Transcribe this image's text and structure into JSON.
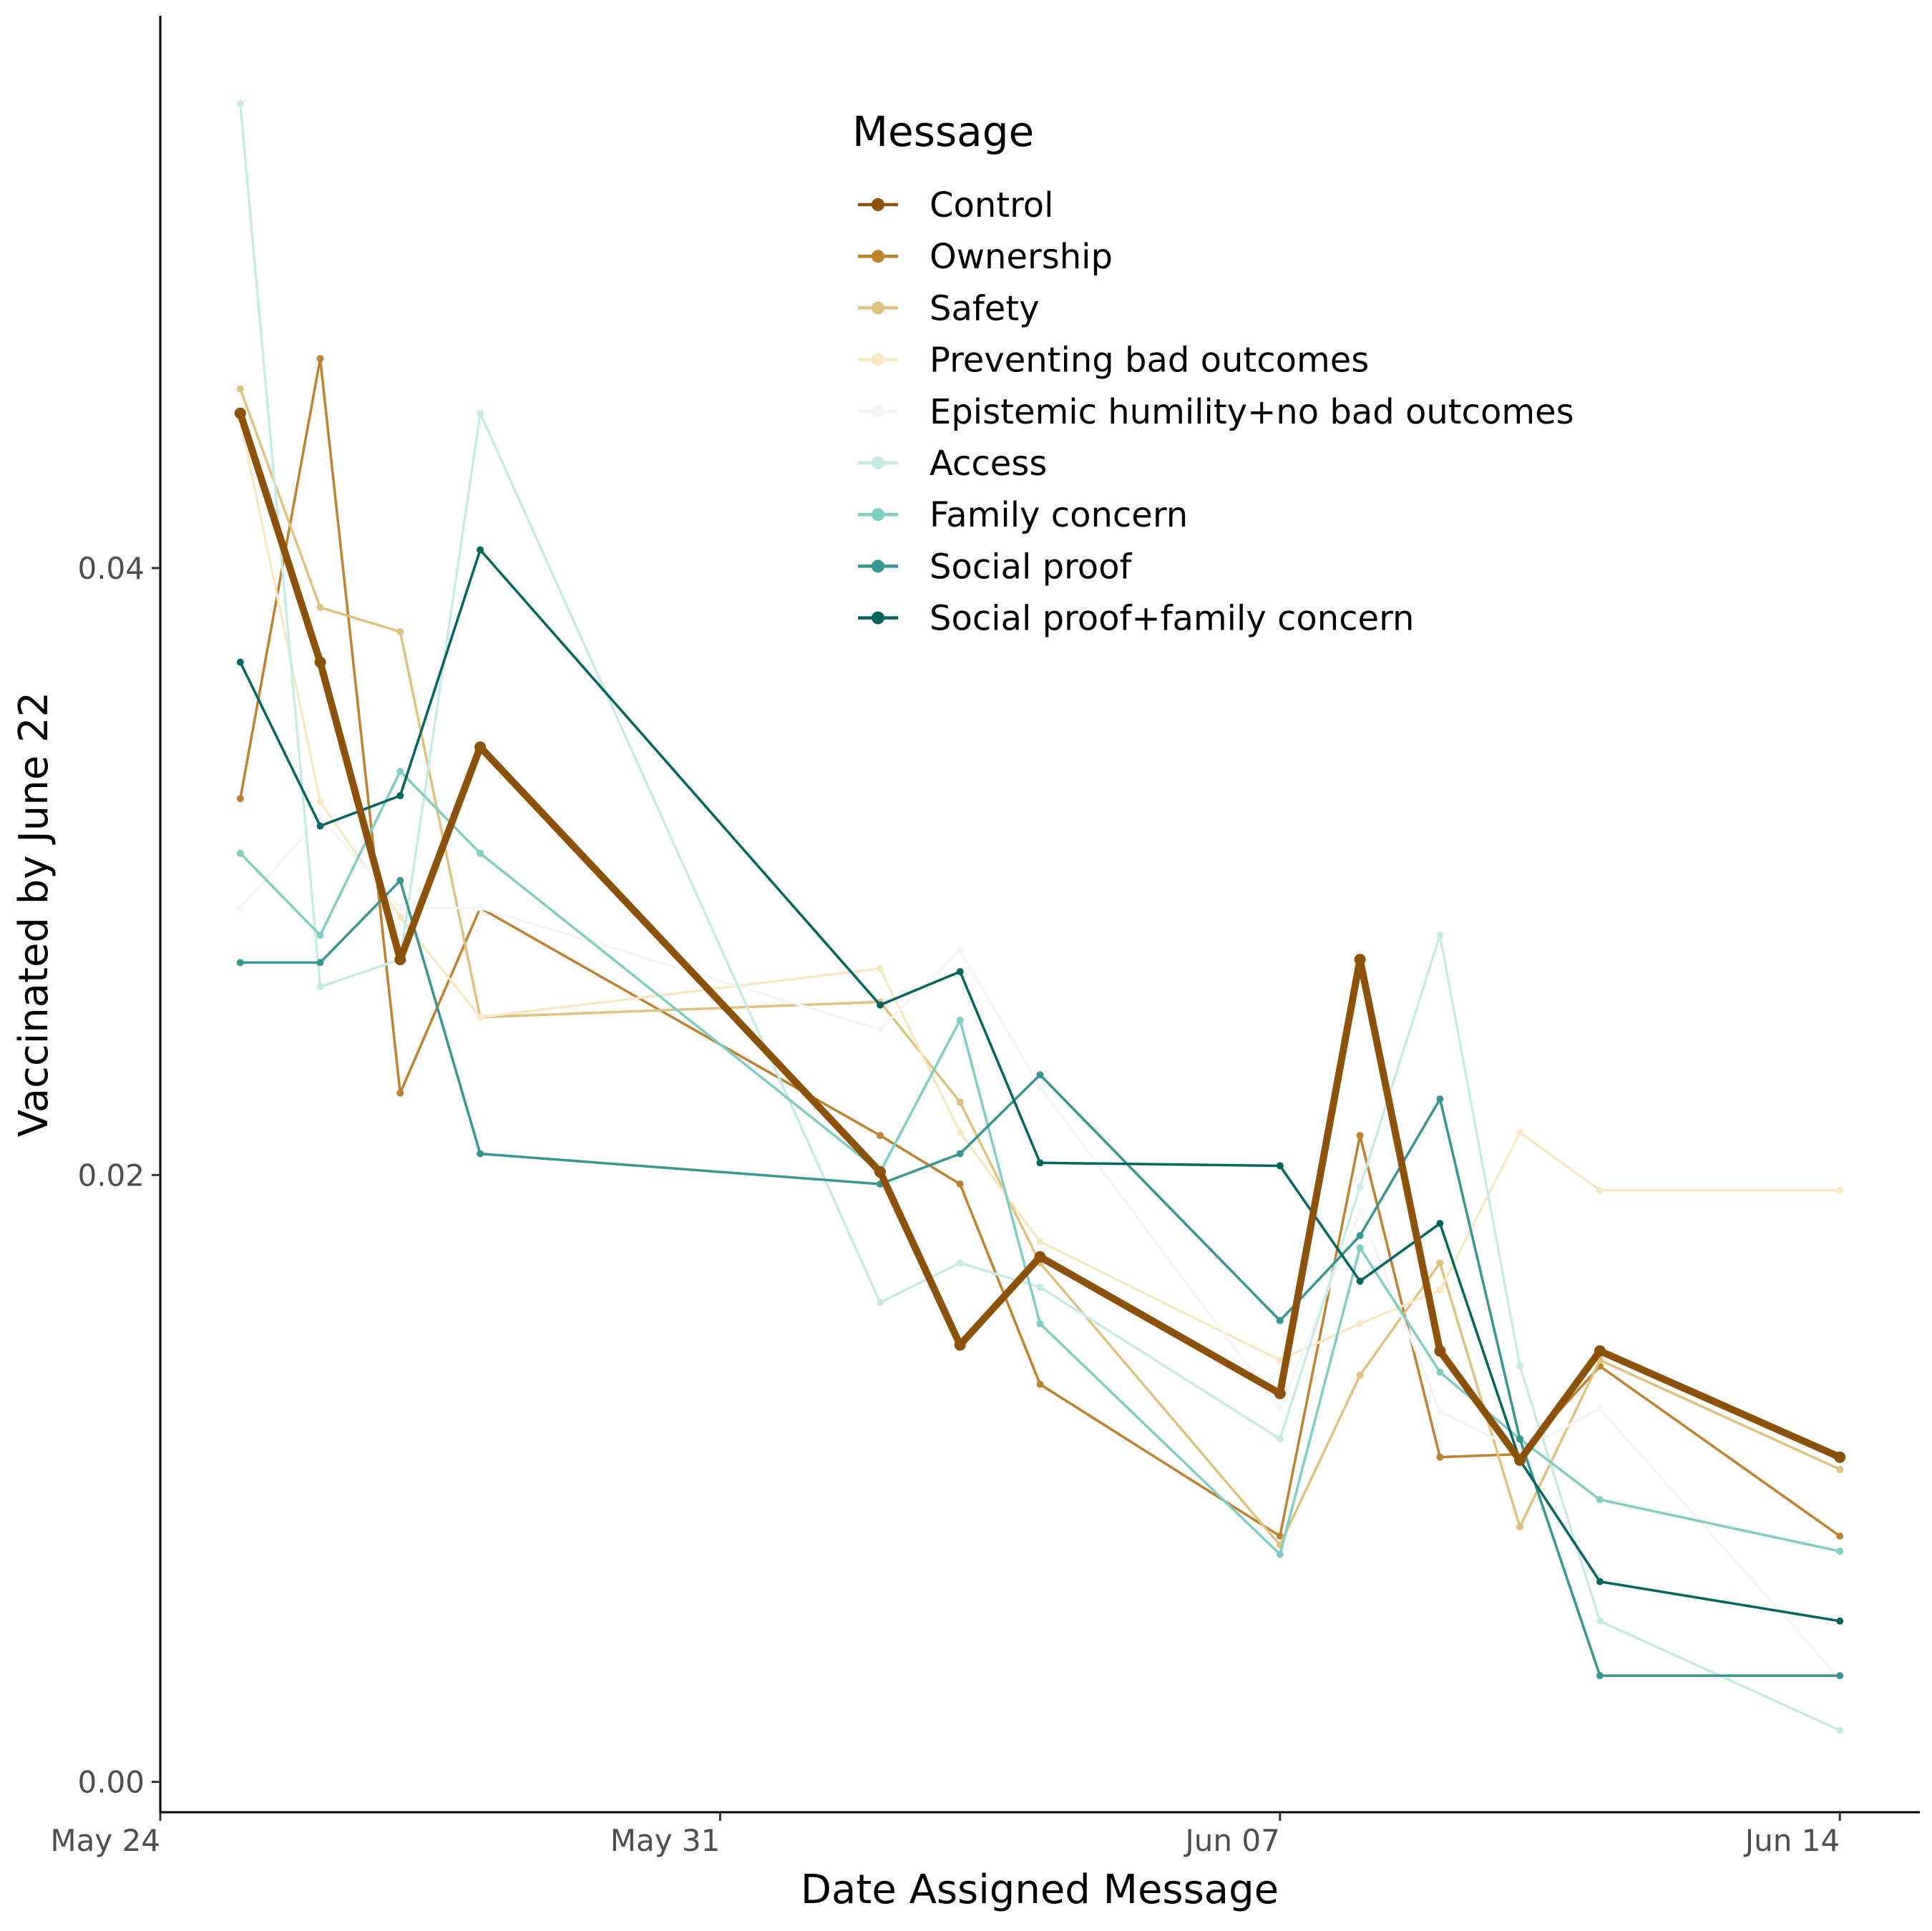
{
  "chart_data": {
    "type": "line",
    "xlabel": "Date Assigned Message",
    "ylabel": "Vaccinated by June 22",
    "x_ticks": [
      "May 24",
      "May 31",
      "Jun 07",
      "Jun 14"
    ],
    "y_ticks": [
      "0.00",
      "0.02",
      "0.04"
    ],
    "xlim": [
      "2021-05-24",
      "2021-06-15"
    ],
    "ylim": [
      -0.001,
      0.0582
    ],
    "grid": false,
    "legend": {
      "title": "Message",
      "position": "top-center"
    },
    "x": [
      "2021-05-25",
      "2021-05-26",
      "2021-05-27",
      "2021-05-28",
      "2021-06-02",
      "2021-06-03",
      "2021-06-04",
      "2021-06-07",
      "2021-06-08",
      "2021-06-09",
      "2021-06-10",
      "2021-06-11",
      "2021-06-14"
    ],
    "series": [
      {
        "name": "Control",
        "color": "#8c510a",
        "emphasis": true,
        "values": [
          0.0451,
          0.0369,
          0.0271,
          0.0341,
          0.0201,
          0.0144,
          0.0173,
          0.0128,
          0.0271,
          0.0142,
          0.0106,
          0.0142,
          0.0107
        ]
      },
      {
        "name": "Ownership",
        "color": "#bf812d",
        "values": [
          0.0324,
          0.0469,
          0.0227,
          0.0288,
          0.0213,
          0.0197,
          0.0131,
          0.0081,
          0.0213,
          0.0107,
          0.0108,
          0.0137,
          0.0081
        ]
      },
      {
        "name": "Safety",
        "color": "#dfc27d",
        "values": [
          0.0459,
          0.0387,
          0.0379,
          0.0252,
          0.0257,
          0.0224,
          0.0171,
          0.0078,
          0.0134,
          0.0171,
          0.0084,
          0.0139,
          0.0103
        ]
      },
      {
        "name": "Preventing bad outcomes",
        "color": "#f6e8c3",
        "values": [
          0.0449,
          0.0323,
          0.0285,
          0.0252,
          0.0268,
          0.0214,
          0.0178,
          0.0139,
          0.0151,
          0.0162,
          0.0214,
          0.0195,
          0.0195
        ]
      },
      {
        "name": "Epistemic humility+no bad outcomes",
        "color": "#f5f5f5",
        "values": [
          0.0288,
          0.0318,
          0.0288,
          0.0288,
          0.0248,
          0.0274,
          0.0229,
          0.0123,
          0.0188,
          0.0122,
          0.0109,
          0.0123,
          0.0034
        ]
      },
      {
        "name": "Access",
        "color": "#c7eae5",
        "values": [
          0.0553,
          0.0262,
          0.0271,
          0.0451,
          0.0158,
          0.0171,
          0.0163,
          0.0113,
          0.0196,
          0.0279,
          0.0137,
          0.0053,
          0.0017
        ]
      },
      {
        "name": "Family concern",
        "color": "#80cdc1",
        "values": [
          0.0306,
          0.0279,
          0.0333,
          0.0306,
          0.0201,
          0.0251,
          0.0151,
          0.0075,
          0.0176,
          0.0135,
          0.0113,
          0.0093,
          0.0076
        ]
      },
      {
        "name": "Social proof",
        "color": "#35978f",
        "values": [
          0.027,
          0.027,
          0.0297,
          0.0207,
          0.0197,
          0.0207,
          0.0233,
          0.0152,
          0.018,
          0.0225,
          0.0113,
          0.0035,
          0.0035
        ]
      },
      {
        "name": "Social proof+family concern",
        "color": "#01665e",
        "values": [
          0.0369,
          0.0315,
          0.0325,
          0.0406,
          0.0256,
          0.0267,
          0.0204,
          0.0203,
          0.0165,
          0.0184,
          0.0106,
          0.0066,
          0.0053
        ]
      }
    ]
  }
}
